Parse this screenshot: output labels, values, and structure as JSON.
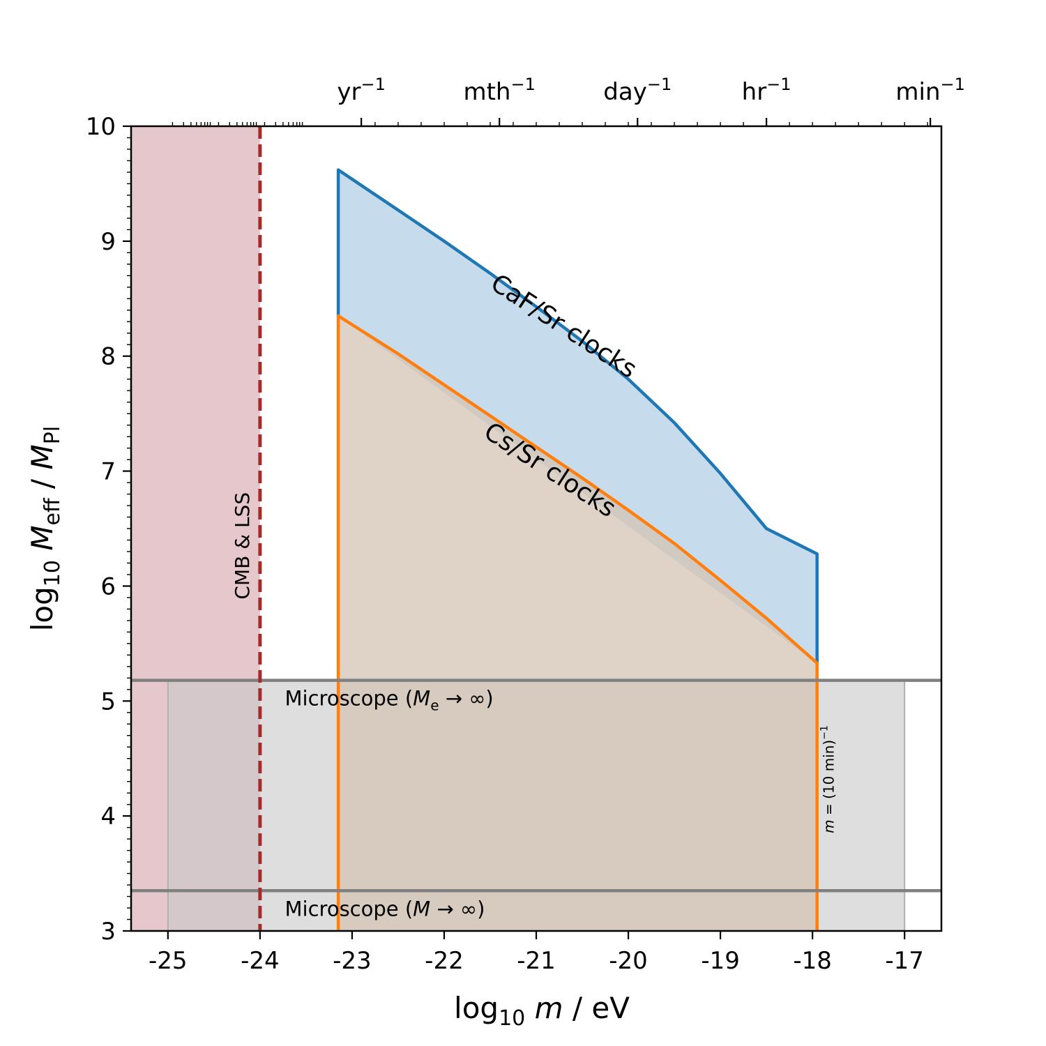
{
  "chart_data": {
    "type": "area",
    "xlabel_pre": "log",
    "xlabel_sub": "10",
    "xlabel_var": "m",
    "xlabel_post": " / eV",
    "ylabel_pre": "log",
    "ylabel_sub": "10",
    "ylabel_var": "M",
    "ylabel_var_sub": "eff",
    "ylabel_mid": " / ",
    "ylabel_den": "M",
    "ylabel_den_sub": "Pl",
    "xlim": [
      -25.4,
      -16.6
    ],
    "ylim": [
      3,
      10
    ],
    "x_ticks": [
      -25,
      -24,
      -23,
      -22,
      -21,
      -20,
      -19,
      -18,
      -17
    ],
    "x_tick_labels": [
      "-25",
      "-24",
      "-23",
      "-22",
      "-21",
      "-20",
      "-19",
      "-18",
      "-17"
    ],
    "y_ticks": [
      3,
      4,
      5,
      6,
      7,
      8,
      9,
      10
    ],
    "y_tick_labels": [
      "3",
      "4",
      "5",
      "6",
      "7",
      "8",
      "9",
      "10"
    ],
    "top_axis": [
      {
        "x": -22.9,
        "base": "yr",
        "exp": "−1"
      },
      {
        "x": -21.4,
        "base": "mth",
        "exp": "−1"
      },
      {
        "x": -19.9,
        "base": "day",
        "exp": "−1"
      },
      {
        "x": -18.5,
        "base": "hr",
        "exp": "−1"
      },
      {
        "x": -16.72,
        "base": "min",
        "exp": "−1"
      }
    ],
    "series": [
      {
        "name": "CaF/Sr clocks",
        "color": "#1f77b4",
        "fill": "#c6dbec",
        "x": [
          -23.15,
          -23.15,
          -22.5,
          -22.0,
          -21.5,
          -21.0,
          -20.5,
          -20.0,
          -19.5,
          -19.0,
          -18.5,
          -17.95,
          -17.95
        ],
        "y": [
          8.35,
          9.62,
          9.27,
          9.0,
          8.72,
          8.43,
          8.13,
          7.8,
          7.42,
          6.98,
          6.5,
          6.28,
          5.33
        ]
      },
      {
        "name": "Cs/Sr clocks",
        "color": "#ff7f0e",
        "fill": "#d4c4b4",
        "x": [
          -23.15,
          -23.15,
          -22.5,
          -22.0,
          -21.5,
          -21.0,
          -20.5,
          -20.0,
          -19.5,
          -19.0,
          -18.5,
          -17.95,
          -17.95
        ],
        "y": [
          3.0,
          8.35,
          8.02,
          7.75,
          7.48,
          7.21,
          6.94,
          6.66,
          6.37,
          6.05,
          5.72,
          5.33,
          3.0
        ]
      }
    ],
    "regions": [
      {
        "name": "CMB & LSS",
        "x": [
          -25.4,
          -24.0
        ],
        "y": [
          3,
          10
        ],
        "fill": "#e6c8cc",
        "line_color": "#a52a2a"
      },
      {
        "name": "Microscope",
        "x": [
          -25.0,
          -17.0
        ],
        "y": [
          3,
          5.18
        ],
        "fill": "#c8c8c8"
      }
    ],
    "hlines": [
      {
        "y": 5.18,
        "label_pre": "Microscope (",
        "label_var": "M",
        "label_sub": "e",
        "label_post": " → ∞)",
        "color": "#808080"
      },
      {
        "y": 3.35,
        "label_pre": "Microscope (",
        "label_var": "M",
        "label_sub": "",
        "label_post": " → ∞)",
        "color": "#808080"
      }
    ],
    "vline_label_pre": "m",
    "vline_label_post": " = (10 min)",
    "vline_label_exp": "−1",
    "vline_x": -17.95,
    "text_labels": [
      {
        "text": "CaF/Sr clocks",
        "x": -20.75,
        "y": 8.2,
        "angle": 33
      },
      {
        "text": "Cs/Sr clocks",
        "x": -20.9,
        "y": 6.95,
        "angle": 33
      },
      {
        "text": "CMB & LSS",
        "x": -24.12,
        "y": 6.35,
        "angle": -90
      }
    ]
  }
}
